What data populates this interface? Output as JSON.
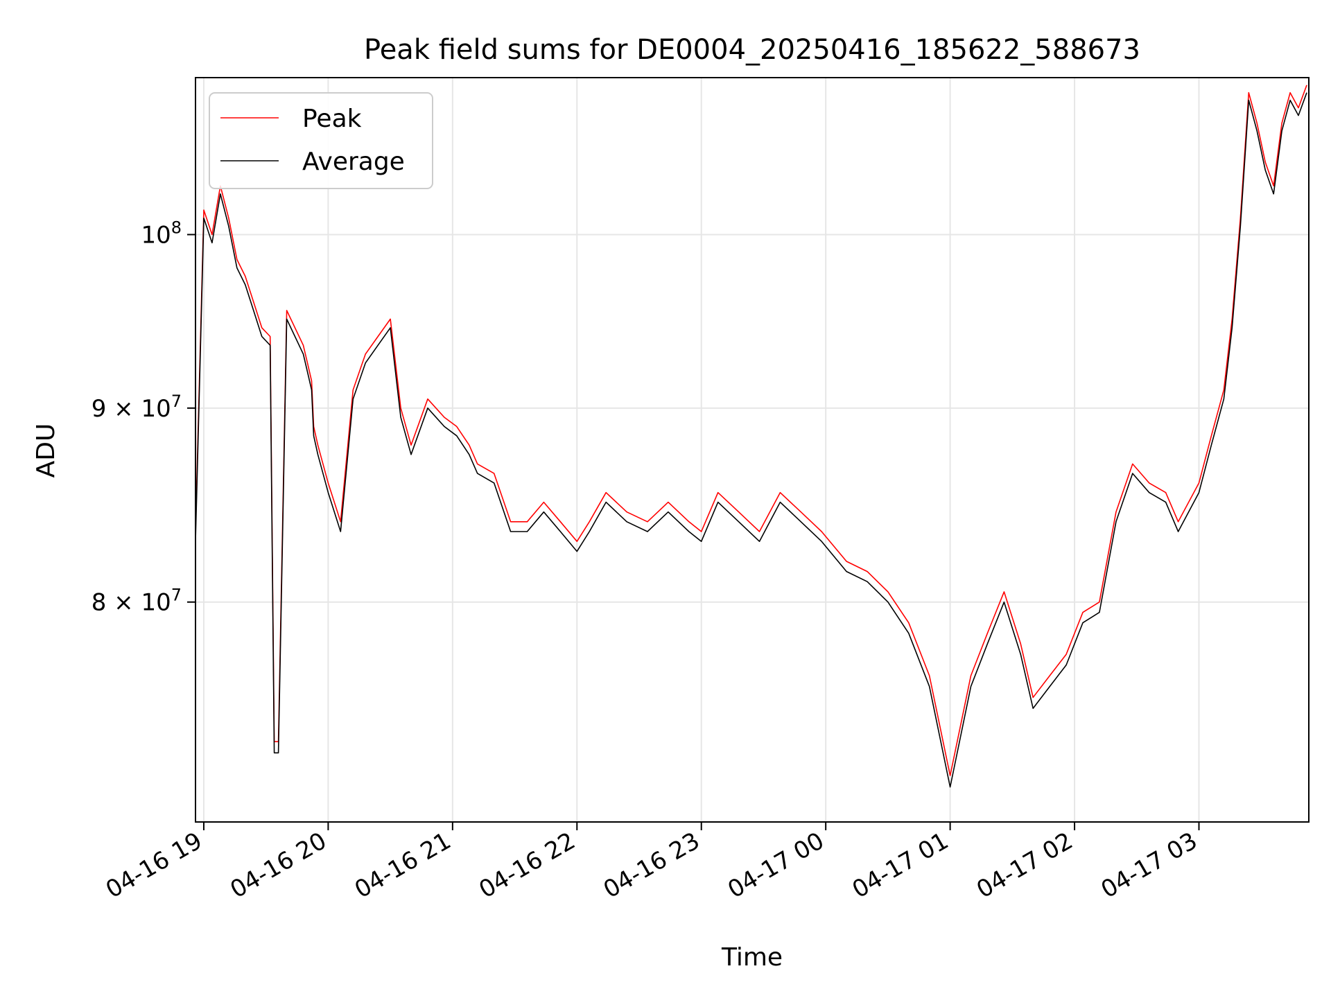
{
  "chart_data": {
    "type": "line",
    "title": "Peak field sums for DE0004_20250416_185622_588673",
    "xlabel": "Time",
    "ylabel": "ADU",
    "y_scale": "log",
    "ylim": [
      70000000,
      110000000
    ],
    "xlim": [
      "04-16 18:56",
      "04-17 03:53"
    ],
    "grid": true,
    "legend_position": "upper-left",
    "x_ticks": [
      "04-16 19",
      "04-16 20",
      "04-16 21",
      "04-16 22",
      "04-16 23",
      "04-17 00",
      "04-17 01",
      "04-17 02",
      "04-17 03"
    ],
    "y_ticks": [
      {
        "value": 80000000,
        "mantissa": "8",
        "exponent": "7"
      },
      {
        "value": 90000000,
        "mantissa": "9",
        "exponent": "7"
      },
      {
        "value": 100000000,
        "mantissa": "",
        "exponent": "8"
      }
    ],
    "x_tick_prefix": "10",
    "x_times": [
      "04-16 18:56",
      "04-16 19:00",
      "04-16 19:04",
      "04-16 19:08",
      "04-16 19:12",
      "04-16 19:16",
      "04-16 19:20",
      "04-16 19:24",
      "04-16 19:28",
      "04-16 19:32",
      "04-16 19:34",
      "04-16 19:36",
      "04-16 19:40",
      "04-16 19:48",
      "04-16 19:50",
      "04-16 19:52",
      "04-16 19:53",
      "04-16 19:55",
      "04-16 20:00",
      "04-16 20:06",
      "04-16 20:12",
      "04-16 20:18",
      "04-16 20:24",
      "04-16 20:30",
      "04-16 20:35",
      "04-16 20:40",
      "04-16 20:48",
      "04-16 20:56",
      "04-16 21:02",
      "04-16 21:08",
      "04-16 21:12",
      "04-16 21:20",
      "04-16 21:28",
      "04-16 21:36",
      "04-16 21:44",
      "04-16 21:52",
      "04-16 22:00",
      "04-16 22:06",
      "04-16 22:14",
      "04-16 22:24",
      "04-16 22:34",
      "04-16 22:44",
      "04-16 22:54",
      "04-16 23:00",
      "04-16 23:08",
      "04-16 23:18",
      "04-16 23:28",
      "04-16 23:38",
      "04-16 23:48",
      "04-16 23:58",
      "04-17 00:10",
      "04-17 00:20",
      "04-17 00:30",
      "04-17 00:40",
      "04-17 00:50",
      "04-17 01:00",
      "04-17 01:10",
      "04-17 01:18",
      "04-17 01:26",
      "04-17 01:34",
      "04-17 01:40",
      "04-17 01:48",
      "04-17 01:56",
      "04-17 02:04",
      "04-17 02:12",
      "04-17 02:20",
      "04-17 02:28",
      "04-17 02:36",
      "04-17 02:44",
      "04-17 02:50",
      "04-17 03:00",
      "04-17 03:06",
      "04-17 03:12",
      "04-17 03:16",
      "04-17 03:20",
      "04-17 03:24",
      "04-17 03:28",
      "04-17 03:32",
      "04-17 03:36",
      "04-17 03:40",
      "04-17 03:44",
      "04-17 03:48",
      "04-17 03:52"
    ],
    "series": [
      {
        "name": "Peak",
        "color": "#ff0000",
        "values": [
          83500000,
          101500000,
          100000000,
          103000000,
          101000000,
          98500000,
          97500000,
          96000000,
          94500000,
          94000000,
          73500000,
          73500000,
          95500000,
          93500000,
          92500000,
          91500000,
          89000000,
          88000000,
          86000000,
          84000000,
          91000000,
          93000000,
          94000000,
          95000000,
          90000000,
          88000000,
          90500000,
          89500000,
          89000000,
          88000000,
          87000000,
          86500000,
          84000000,
          84000000,
          85000000,
          84000000,
          83000000,
          84000000,
          85500000,
          84500000,
          84000000,
          85000000,
          84000000,
          83500000,
          85500000,
          84500000,
          83500000,
          85500000,
          84500000,
          83500000,
          82000000,
          81500000,
          80500000,
          79000000,
          76500000,
          72000000,
          76500000,
          78500000,
          80500000,
          78000000,
          75500000,
          76500000,
          77500000,
          79500000,
          80000000,
          84500000,
          87000000,
          86000000,
          85500000,
          84000000,
          86000000,
          88500000,
          91000000,
          95000000,
          101000000,
          109000000,
          107000000,
          104500000,
          103000000,
          107000000,
          109000000,
          108000000,
          109500000
        ]
      },
      {
        "name": "Average",
        "color": "#000000",
        "values": [
          83000000,
          101000000,
          99500000,
          102500000,
          100500000,
          98000000,
          97000000,
          95500000,
          94000000,
          93500000,
          73000000,
          73000000,
          95000000,
          93000000,
          92000000,
          91000000,
          88500000,
          87500000,
          85500000,
          83500000,
          90500000,
          92500000,
          93500000,
          94500000,
          89500000,
          87500000,
          90000000,
          89000000,
          88500000,
          87500000,
          86500000,
          86000000,
          83500000,
          83500000,
          84500000,
          83500000,
          82500000,
          83500000,
          85000000,
          84000000,
          83500000,
          84500000,
          83500000,
          83000000,
          85000000,
          84000000,
          83000000,
          85000000,
          84000000,
          83000000,
          81500000,
          81000000,
          80000000,
          78500000,
          76000000,
          71500000,
          76000000,
          78000000,
          80000000,
          77500000,
          75000000,
          76000000,
          77000000,
          79000000,
          79500000,
          84000000,
          86500000,
          85500000,
          85000000,
          83500000,
          85500000,
          88000000,
          90500000,
          94500000,
          100500000,
          108500000,
          106500000,
          104000000,
          102500000,
          106500000,
          108500000,
          107500000,
          109000000
        ]
      }
    ]
  }
}
